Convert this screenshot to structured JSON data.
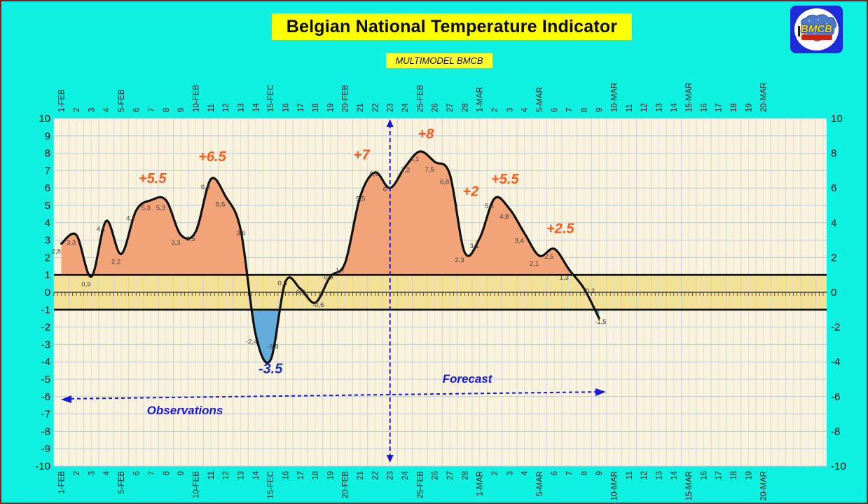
{
  "header": {
    "title": "Belgian National Temperature Indicator",
    "subtitle": "MULTIMODEL BMCB",
    "logo_text": "BMCB"
  },
  "chart_data": {
    "type": "area",
    "title": "Belgian National Temperature Indicator",
    "subtitle": "MULTIMODEL BMCB",
    "ylim": [
      -10,
      10
    ],
    "left_axis_ticks": [
      10,
      9,
      8,
      7,
      6,
      5,
      4,
      3,
      2,
      1,
      0,
      -1,
      -2,
      -3,
      -4,
      -5,
      -6,
      -7,
      -8,
      -9,
      -10
    ],
    "right_axis_ticks": [
      10,
      8,
      6,
      4,
      2,
      0,
      -2,
      -4,
      -6,
      -8,
      -10
    ],
    "reference_lines": [
      1,
      -1
    ],
    "x_labels": [
      "1-FEB",
      "2",
      "3",
      "4",
      "5-FEB",
      "6",
      "7",
      "8",
      "9",
      "10-FEB",
      "11",
      "12",
      "13",
      "14",
      "15-FEC",
      "16",
      "17",
      "18",
      "19",
      "20-FEB",
      "21",
      "22",
      "23",
      "24",
      "25-FEB",
      "26",
      "27",
      "28",
      "1-MAR",
      "2",
      "3",
      "4",
      "5-MAR",
      "6",
      "7",
      "8",
      "9",
      "10-MAR",
      "11",
      "12",
      "13",
      "14",
      "15-MAR",
      "16",
      "17",
      "18",
      "19",
      "20-MAR"
    ],
    "series": [
      {
        "name": "national temperature indicator",
        "points": [
          {
            "date": "1-FEB",
            "value": 2.8,
            "label": "2,8"
          },
          {
            "date": "2-FEB",
            "value": 3.3,
            "label": "3,3"
          },
          {
            "date": "3-FEB",
            "value": 0.9,
            "label": "0,9"
          },
          {
            "date": "4-FEB",
            "value": 4.1,
            "label": "4,1"
          },
          {
            "date": "5-FEB",
            "value": 2.2,
            "label": "2,2"
          },
          {
            "date": "6-FEB",
            "value": 4.7,
            "label": "4,7"
          },
          {
            "date": "7-FEB",
            "value": 5.3,
            "label": "5,3"
          },
          {
            "date": "8-FEB",
            "value": 5.3,
            "label": "5,3"
          },
          {
            "date": "9-FEB",
            "value": 3.3,
            "label": "3,3"
          },
          {
            "date": "10-FEB",
            "value": 3.5,
            "label": "3,5"
          },
          {
            "date": "11-FEB",
            "value": 6.5,
            "label": "6,5"
          },
          {
            "date": "12-FEB",
            "value": 5.5,
            "label": "5,5"
          },
          {
            "date": "13-FEB",
            "value": 3.6,
            "label": "3,6"
          },
          {
            "date": "14-FEB",
            "value": -2.4,
            "label": "-2,4"
          },
          {
            "date": "15-FEB",
            "value": -3.9,
            "label": "-3,9"
          },
          {
            "date": "16-FEB",
            "value": 0.6,
            "label": "0,6"
          },
          {
            "date": "17-FEB",
            "value": 0.2,
            "label": "0,2"
          },
          {
            "date": "18-FEB",
            "value": -0.6,
            "label": "-0,6"
          },
          {
            "date": "19-FEB",
            "value": 0.9,
            "label": "0,9"
          },
          {
            "date": "20-FEB",
            "value": 1.7,
            "label": "1,7"
          },
          {
            "date": "21-FEB",
            "value": 5.5,
            "label": "5,5"
          },
          {
            "date": "22-FEB",
            "value": 6.9,
            "label": "6,9"
          },
          {
            "date": "23-FEB",
            "value": 6.0,
            "label": "6"
          },
          {
            "date": "24-FEB",
            "value": 7.2,
            "label": "7,2"
          },
          {
            "date": "25-FEB",
            "value": 8.1,
            "label": "8,1"
          },
          {
            "date": "26-FEB",
            "value": 7.5,
            "label": "7,5"
          },
          {
            "date": "27-FEB",
            "value": 6.8,
            "label": "6,8"
          },
          {
            "date": "28-FEB",
            "value": 2.3,
            "label": "2,3"
          },
          {
            "date": "1-MAR",
            "value": 3.1,
            "label": "3,1"
          },
          {
            "date": "2-MAR",
            "value": 5.4,
            "label": "5,4"
          },
          {
            "date": "3-MAR",
            "value": 4.8,
            "label": "4,8"
          },
          {
            "date": "4-MAR",
            "value": 3.4,
            "label": "3,4"
          },
          {
            "date": "5-MAR",
            "value": 2.1,
            "label": "2,1"
          },
          {
            "date": "6-MAR",
            "value": 2.5,
            "label": "2,5"
          },
          {
            "date": "7-MAR",
            "value": 1.3,
            "label": "1,3"
          },
          {
            "date": "8-MAR",
            "value": 0.2,
            "label": "0,2"
          },
          {
            "date": "9-MAR",
            "value": -1.5,
            "label": "-1,5"
          }
        ]
      }
    ],
    "annotations": [
      {
        "text": "+5.5",
        "slot": 6.1,
        "value": 6.3,
        "color": "#FF5A1A"
      },
      {
        "text": "+6.5",
        "slot": 10.1,
        "value": 7.55,
        "color": "#FF5A1A"
      },
      {
        "text": "+7",
        "slot": 20.1,
        "value": 7.65,
        "color": "#FF5A1A"
      },
      {
        "text": "+8",
        "slot": 24.4,
        "value": 8.85,
        "color": "#FF5A1A"
      },
      {
        "text": "+2",
        "slot": 27.4,
        "value": 5.55,
        "color": "#FF5A1A"
      },
      {
        "text": "+5.5",
        "slot": 29.7,
        "value": 6.25,
        "color": "#FF5A1A"
      },
      {
        "text": "+2.5",
        "slot": 33.4,
        "value": 3.4,
        "color": "#FF5A1A"
      },
      {
        "text": "-3.5",
        "slot": 14.0,
        "value": -4.65,
        "color": "#1C2FB5"
      }
    ],
    "markers": {
      "divider_date": "23-FEB",
      "divider_slot": 22.5,
      "observations_label": "Observations",
      "forecast_label": "Forecast"
    },
    "legend": "none",
    "grid": "on",
    "colors": {
      "background": "#0EF0E0",
      "frame_border": "#8B1A1A",
      "title_bg": "#FFFF00",
      "plot_bg": "#FAF3DB",
      "zero_band": "#F5E192",
      "grid_v": "#C9D0DF",
      "grid_v_light": "#D8DDE8",
      "grid_h": "#BFC9DB",
      "curve": "#111111",
      "fill_positive": "#F2A478",
      "fill_negative": "#62ADDC",
      "annotation_orange": "#FF5A1A",
      "annotation_blue": "#1C2FB5",
      "arrow_blue": "#1818D8",
      "data_label": "#3C3C3C",
      "logo_bg": "#1E2BD8",
      "logo_text": "#FFCE00",
      "logo_ribbon": "#D42010"
    }
  }
}
